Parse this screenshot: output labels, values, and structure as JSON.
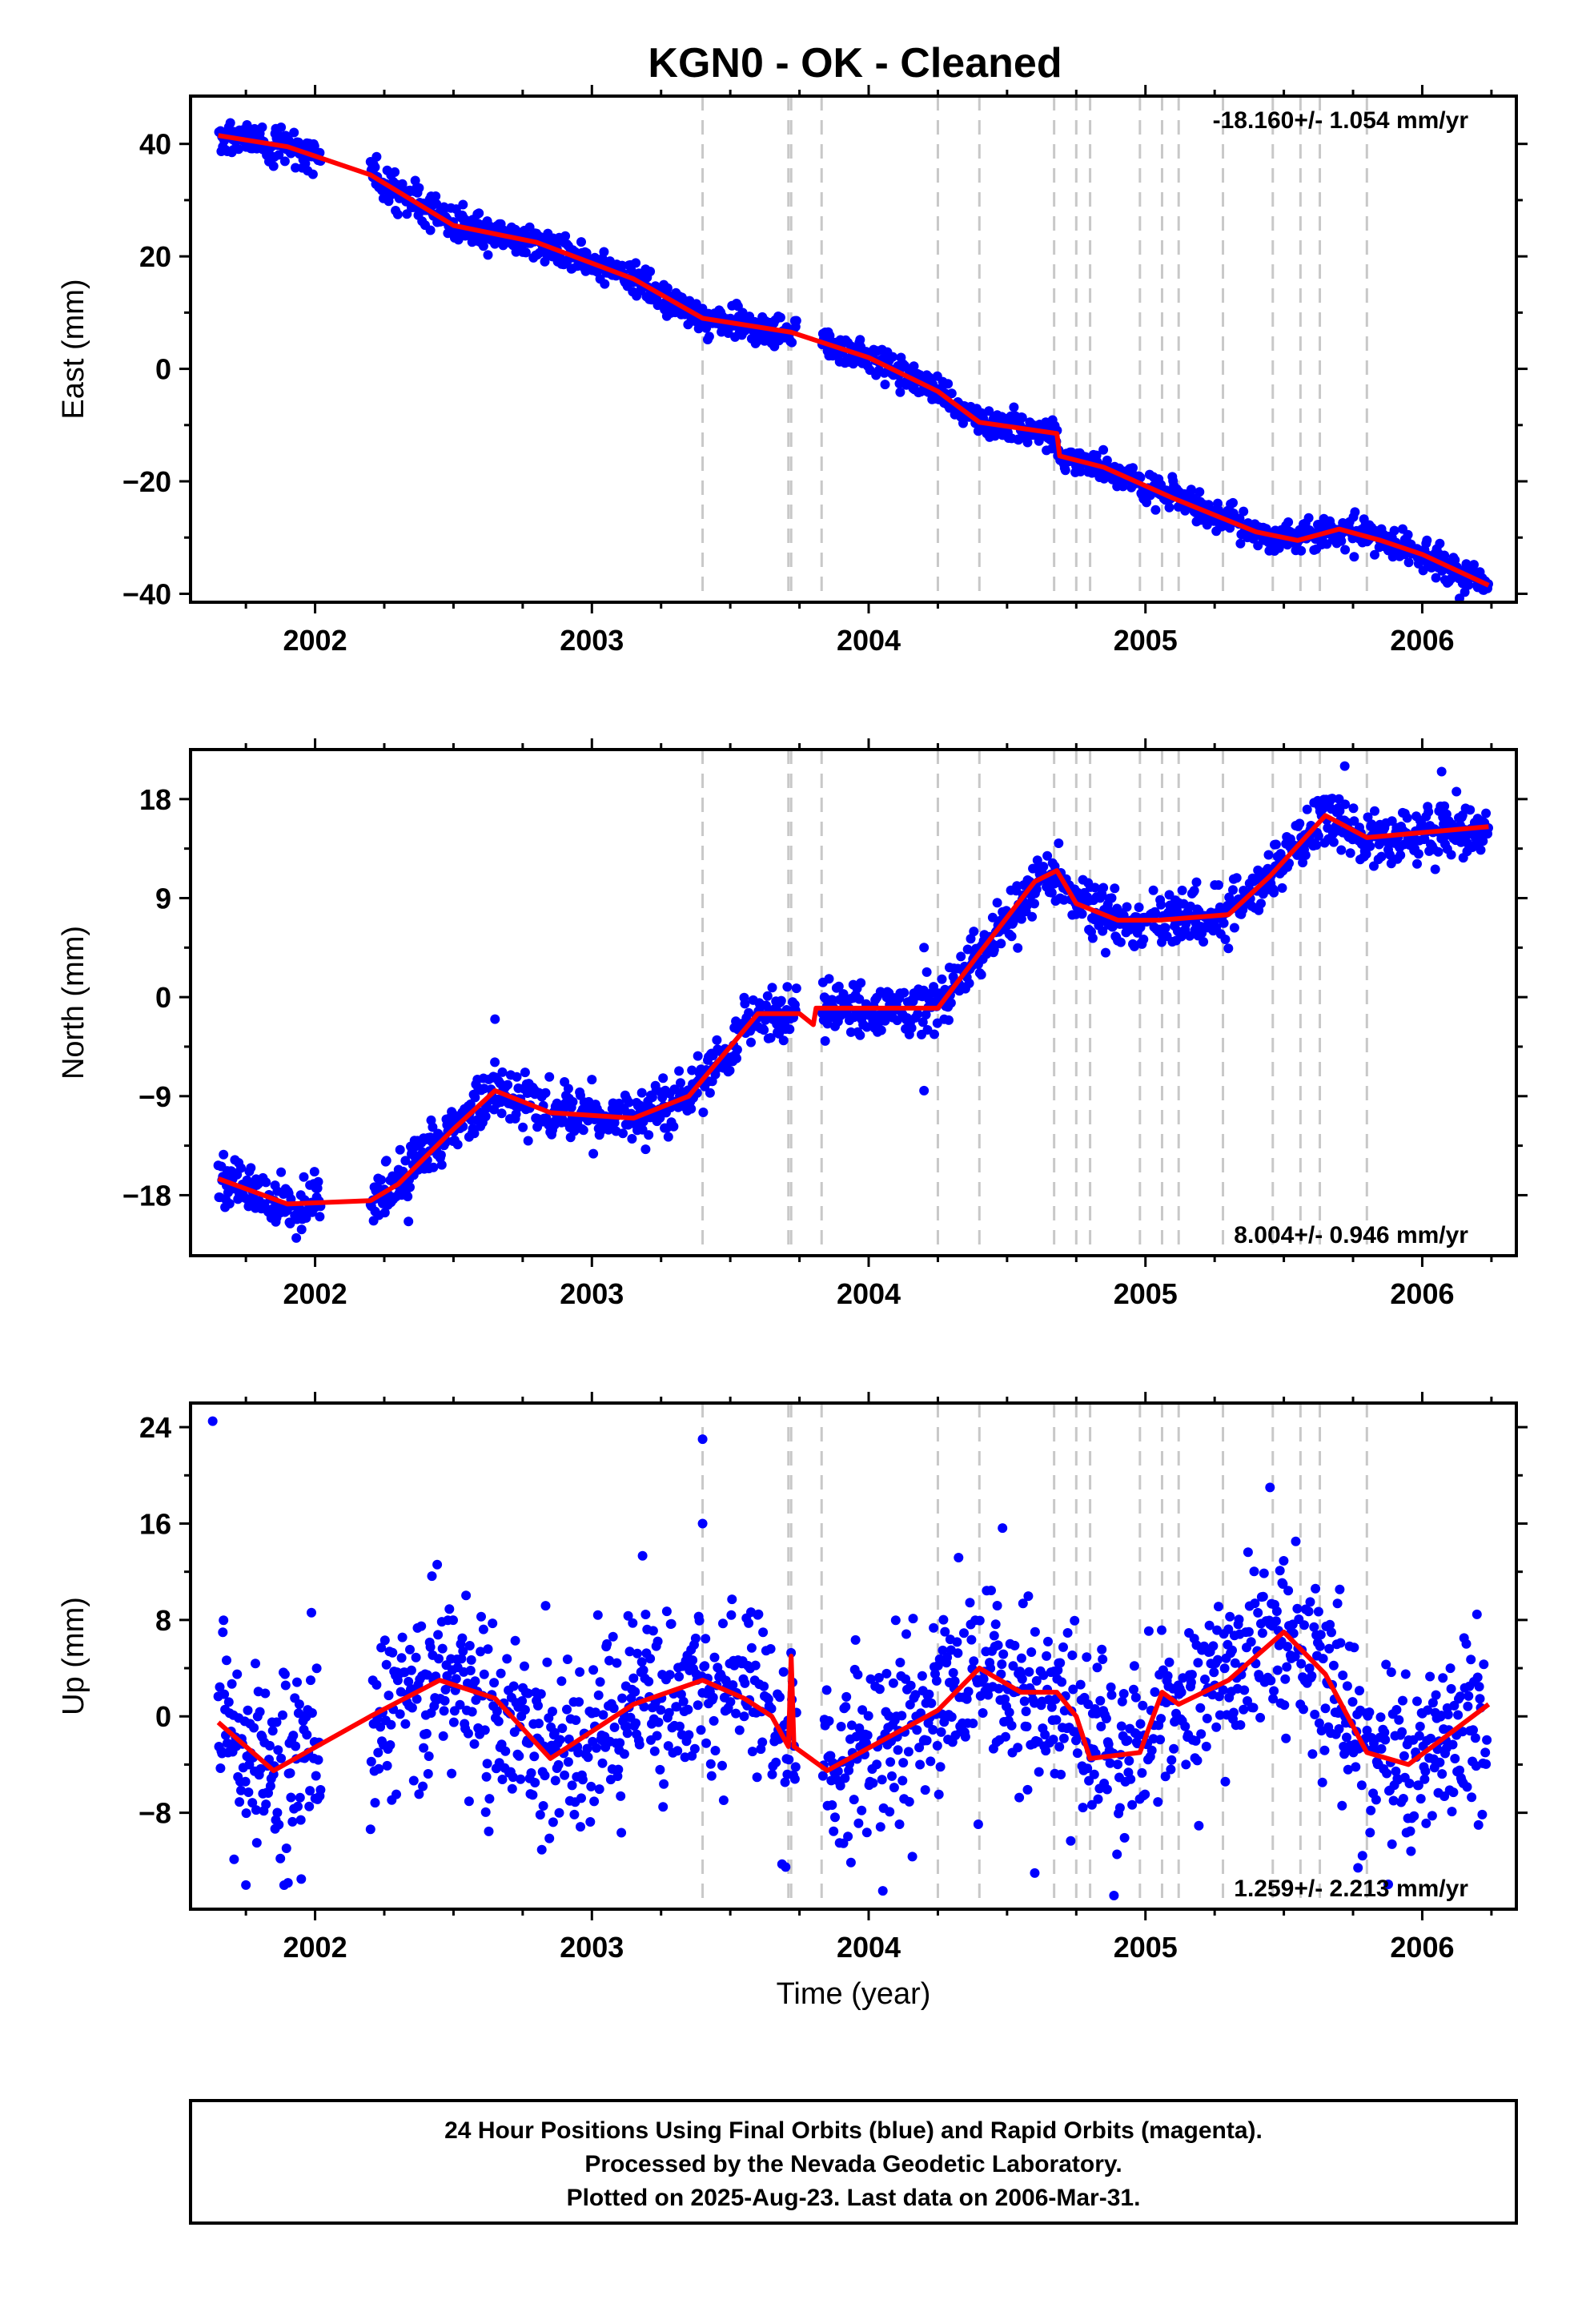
{
  "title": "KGN0  - OK - Cleaned",
  "colors": {
    "points": "#0000ff",
    "model": "#ff0000",
    "steps": "#c8c8c8",
    "frame": "#000000"
  },
  "chart_data": [
    {
      "type": "scatter",
      "component": "east",
      "ylabel": "East (mm)",
      "xlabel": "",
      "rate_label": "-18.160+/- 1.054 mm/yr",
      "xlim": [
        2001.55,
        2006.34
      ],
      "ylim": [
        -41.5,
        48.5
      ],
      "yticks": [
        -40,
        -20,
        0,
        20,
        40
      ],
      "ytick_labels": [
        "−40",
        "−20",
        "0",
        "20",
        "40"
      ],
      "xticks": [
        2002,
        2003,
        2004,
        2005,
        2006
      ],
      "xtick_labels": [
        "2002",
        "2003",
        "2004",
        "2005",
        "2006"
      ],
      "trend_knots": [
        [
          2001.65,
          41.5
        ],
        [
          2001.9,
          39.5
        ],
        [
          2002.2,
          34.5
        ],
        [
          2002.5,
          25.5
        ],
        [
          2002.8,
          22.5
        ],
        [
          2003.15,
          16.0
        ],
        [
          2003.4,
          9.0
        ],
        [
          2003.72,
          6.5
        ],
        [
          2004.0,
          2.0
        ],
        [
          2004.25,
          -4.0
        ],
        [
          2004.4,
          -9.5
        ],
        [
          2004.68,
          -11.5
        ],
        [
          2004.69,
          -15.5
        ],
        [
          2004.85,
          -17.5
        ],
        [
          2005.1,
          -23.0
        ],
        [
          2005.4,
          -29.0
        ],
        [
          2005.55,
          -30.5
        ],
        [
          2005.7,
          -28.5
        ],
        [
          2005.85,
          -30.5
        ],
        [
          2006.0,
          -33.0
        ],
        [
          2006.24,
          -38.5
        ]
      ],
      "gaps": [
        [
          2002.02,
          2002.2
        ],
        [
          2003.74,
          2003.83
        ]
      ],
      "scatter_sd": 1.4,
      "outliers": [],
      "steps": [
        2003.4,
        2003.71,
        2003.72,
        2003.83,
        2004.25,
        2004.4,
        2004.67,
        2004.75,
        2004.8,
        2004.98,
        2005.06,
        2005.12,
        2005.28,
        2005.46,
        2005.56,
        2005.63,
        2005.8
      ]
    },
    {
      "type": "scatter",
      "component": "north",
      "ylabel": "North (mm)",
      "xlabel": "",
      "rate_label": "8.004+/- 0.946 mm/yr",
      "xlim": [
        2001.55,
        2006.34
      ],
      "ylim": [
        -23.5,
        22.5
      ],
      "yticks": [
        -18,
        -9,
        0,
        9,
        18
      ],
      "ytick_labels": [
        "−18",
        "−9",
        "0",
        "9",
        "18"
      ],
      "xticks": [
        2002,
        2003,
        2004,
        2005,
        2006
      ],
      "xtick_labels": [
        "2002",
        "2003",
        "2004",
        "2005",
        "2006"
      ],
      "trend_knots": [
        [
          2001.65,
          -16.5
        ],
        [
          2001.9,
          -18.8
        ],
        [
          2002.2,
          -18.5
        ],
        [
          2002.3,
          -17.0
        ],
        [
          2002.5,
          -12.0
        ],
        [
          2002.65,
          -8.5
        ],
        [
          2002.85,
          -10.5
        ],
        [
          2003.15,
          -11.0
        ],
        [
          2003.35,
          -9.0
        ],
        [
          2003.6,
          -1.5
        ],
        [
          2003.75,
          -1.5
        ],
        [
          2003.8,
          -2.5
        ],
        [
          2003.81,
          -1.0
        ],
        [
          2004.25,
          -1.0
        ],
        [
          2004.4,
          4.0
        ],
        [
          2004.6,
          10.5
        ],
        [
          2004.68,
          11.5
        ],
        [
          2004.75,
          8.5
        ],
        [
          2004.9,
          7.0
        ],
        [
          2005.05,
          7.0
        ],
        [
          2005.3,
          7.5
        ],
        [
          2005.45,
          11.0
        ],
        [
          2005.65,
          16.5
        ],
        [
          2005.8,
          14.5
        ],
        [
          2006.24,
          15.5
        ]
      ],
      "gaps": [
        [
          2002.02,
          2002.2
        ],
        [
          2003.74,
          2003.83
        ]
      ],
      "scatter_sd": 1.2,
      "outliers": [
        [
          2002.65,
          -2.0
        ],
        [
          2003.0,
          -7.5
        ],
        [
          2004.2,
          4.5
        ],
        [
          2004.2,
          -8.5
        ],
        [
          2005.72,
          21.0
        ],
        [
          2006.07,
          20.5
        ]
      ],
      "steps": [
        2003.4,
        2003.71,
        2003.72,
        2003.83,
        2004.25,
        2004.4,
        2004.67,
        2004.75,
        2004.8,
        2004.98,
        2005.06,
        2005.12,
        2005.28,
        2005.46,
        2005.56,
        2005.63,
        2005.8
      ]
    },
    {
      "type": "scatter",
      "component": "up",
      "ylabel": "Up (mm)",
      "xlabel": "Time (year)",
      "rate_label": "1.259+/- 2.213 mm/yr",
      "xlim": [
        2001.55,
        2006.34
      ],
      "ylim": [
        -16,
        26
      ],
      "yticks": [
        -8,
        0,
        8,
        16,
        24
      ],
      "ytick_labels": [
        "−8",
        "0",
        "8",
        "16",
        "24"
      ],
      "xticks": [
        2002,
        2003,
        2004,
        2005,
        2006
      ],
      "xtick_labels": [
        "2002",
        "2003",
        "2004",
        "2005",
        "2006"
      ],
      "trend_knots": [
        [
          2001.65,
          -0.5
        ],
        [
          2001.85,
          -4.5
        ],
        [
          2002.2,
          0.0
        ],
        [
          2002.45,
          3.0
        ],
        [
          2002.65,
          1.5
        ],
        [
          2002.85,
          -3.5
        ],
        [
          2003.15,
          1.0
        ],
        [
          2003.4,
          3.0
        ],
        [
          2003.55,
          1.5
        ],
        [
          2003.65,
          0.0
        ],
        [
          2003.71,
          -2.5
        ],
        [
          2003.72,
          5.0
        ],
        [
          2003.73,
          -2.5
        ],
        [
          2003.85,
          -4.5
        ],
        [
          2004.05,
          -2.0
        ],
        [
          2004.25,
          0.5
        ],
        [
          2004.4,
          4.0
        ],
        [
          2004.55,
          2.0
        ],
        [
          2004.68,
          2.0
        ],
        [
          2004.75,
          0.0
        ],
        [
          2004.8,
          -3.5
        ],
        [
          2004.98,
          -3.0
        ],
        [
          2005.06,
          2.0
        ],
        [
          2005.12,
          1.0
        ],
        [
          2005.3,
          3.0
        ],
        [
          2005.5,
          7.0
        ],
        [
          2005.65,
          3.5
        ],
        [
          2005.8,
          -3.0
        ],
        [
          2005.95,
          -4.0
        ],
        [
          2006.24,
          1.0
        ]
      ],
      "gaps": [
        [
          2002.02,
          2002.2
        ],
        [
          2003.74,
          2003.83
        ]
      ],
      "scatter_sd": 3.8,
      "outliers": [
        [
          2001.63,
          24.5
        ],
        [
          2003.4,
          23.0
        ],
        [
          2003.4,
          16.0
        ],
        [
          2005.45,
          19.0
        ],
        [
          2001.75,
          -14.0
        ],
        [
          2001.95,
          -13.5
        ],
        [
          2003.7,
          -12.5
        ],
        [
          2004.6,
          -13.0
        ]
      ],
      "steps": [
        2003.4,
        2003.71,
        2003.72,
        2003.83,
        2004.25,
        2004.4,
        2004.67,
        2004.75,
        2004.8,
        2004.98,
        2005.06,
        2005.12,
        2005.28,
        2005.46,
        2005.56,
        2005.63,
        2005.8
      ]
    }
  ],
  "footer": {
    "line1": "24 Hour Positions Using Final Orbits (blue) and Rapid Orbits (magenta).",
    "line2": "Processed by the Nevada Geodetic Laboratory.",
    "line3": "Plotted on 2025-Aug-23. Last data on 2006-Mar-31."
  }
}
